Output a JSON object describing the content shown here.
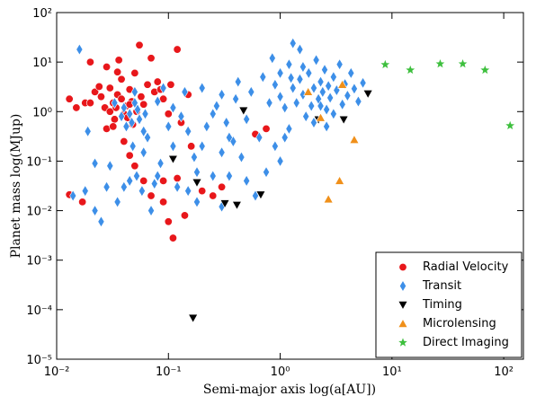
{
  "chart_data": {
    "type": "scatter",
    "x_label": "Semi-major axis log(a[AU])",
    "y_label": "Planet mass log(MJup)",
    "log_x": true,
    "log_y": true,
    "xlim": [
      0.01,
      150
    ],
    "ylim": [
      1e-05,
      100
    ],
    "xticks": [
      {
        "value": 0.01,
        "label": "10⁻²"
      },
      {
        "value": 0.1,
        "label": "10⁻¹"
      },
      {
        "value": 1,
        "label": "10⁰"
      },
      {
        "value": 10,
        "label": "10¹"
      },
      {
        "value": 100,
        "label": "10²"
      }
    ],
    "yticks": [
      {
        "value": 1e-05,
        "label": "10⁻⁵"
      },
      {
        "value": 0.0001,
        "label": "10⁻⁴"
      },
      {
        "value": 0.001,
        "label": "10⁻³"
      },
      {
        "value": 0.01,
        "label": "10⁻²"
      },
      {
        "value": 0.1,
        "label": "10⁻¹"
      },
      {
        "value": 1,
        "label": "10⁰"
      },
      {
        "value": 10,
        "label": "10¹"
      },
      {
        "value": 100,
        "label": "10²"
      }
    ],
    "legend": "lower right",
    "series": [
      {
        "name": "Radial Velocity",
        "color": "#e8171b",
        "marker": "circle",
        "x": [
          0.013,
          0.015,
          0.018,
          0.02,
          0.022,
          0.025,
          0.027,
          0.028,
          0.03,
          0.032,
          0.033,
          0.035,
          0.036,
          0.038,
          0.04,
          0.042,
          0.045,
          0.047,
          0.05,
          0.052,
          0.055,
          0.057,
          0.06,
          0.065,
          0.07,
          0.075,
          0.08,
          0.09,
          0.1,
          0.12,
          0.13,
          0.15,
          0.028,
          0.032,
          0.024,
          0.043,
          0.038,
          0.048,
          0.085,
          0.105,
          0.03,
          0.034,
          0.02,
          0.045,
          0.035,
          0.013,
          0.017,
          0.05,
          0.06,
          0.07,
          0.045,
          0.1,
          0.11,
          0.09,
          0.14,
          0.12,
          0.2,
          0.25,
          0.3,
          0.16,
          0.6,
          0.75,
          0.04,
          0.09
        ],
        "y": [
          1.8,
          1.2,
          1.5,
          10,
          2.5,
          2.0,
          1.2,
          8,
          3,
          1.5,
          0.7,
          2.2,
          11,
          1.8,
          0.9,
          1.3,
          2.8,
          1.6,
          6,
          1.0,
          22,
          2.0,
          1.4,
          3.5,
          12,
          2.5,
          4,
          1.8,
          0.9,
          18,
          0.6,
          2.2,
          0.45,
          0.5,
          3.2,
          0.75,
          4.5,
          0.55,
          2.8,
          3.5,
          1.0,
          1.2,
          1.5,
          1.4,
          6.3,
          0.021,
          0.015,
          0.08,
          0.04,
          0.02,
          0.13,
          0.006,
          0.0028,
          0.015,
          0.008,
          0.045,
          0.025,
          0.02,
          0.03,
          0.2,
          0.35,
          0.45,
          0.25,
          0.04
        ]
      },
      {
        "name": "Transit",
        "color": "#3d8fe8",
        "marker": "diamond",
        "x": [
          0.016,
          0.014,
          0.018,
          0.019,
          0.022,
          0.025,
          0.03,
          0.035,
          0.04,
          0.042,
          0.045,
          0.05,
          0.055,
          0.06,
          0.065,
          0.048,
          0.052,
          0.058,
          0.07,
          0.075,
          0.08,
          0.085,
          0.045,
          0.05,
          0.04,
          0.033,
          0.038,
          0.047,
          0.053,
          0.062,
          0.08,
          0.1,
          0.09,
          0.11,
          0.13,
          0.15,
          0.17,
          0.18,
          0.2,
          0.2,
          0.22,
          0.25,
          0.27,
          0.3,
          0.3,
          0.33,
          0.35,
          0.38,
          0.4,
          0.42,
          0.45,
          0.5,
          0.55,
          0.6,
          0.65,
          0.7,
          0.8,
          0.85,
          0.9,
          1.0,
          1.0,
          1.1,
          1.2,
          1.3,
          1.4,
          1.5,
          1.5,
          1.6,
          1.7,
          1.8,
          1.9,
          2.0,
          2.1,
          2.2,
          2.3,
          2.4,
          2.5,
          2.6,
          2.7,
          2.8,
          3.0,
          3.2,
          3.4,
          3.6,
          3.8,
          4.0,
          4.3,
          4.6,
          5.0,
          5.5,
          1.2,
          1.0,
          0.75,
          0.9,
          1.25,
          1.6,
          2.0,
          2.3,
          0.3,
          0.18,
          0.12,
          0.25,
          0.15,
          0.06,
          0.022,
          0.028,
          0.11,
          0.14,
          0.5,
          1.3,
          3.0,
          2.6,
          1.1,
          0.35
        ],
        "y": [
          18,
          0.02,
          0.025,
          0.4,
          0.01,
          0.006,
          0.08,
          0.015,
          0.03,
          0.5,
          0.9,
          1.5,
          0.7,
          0.4,
          0.3,
          0.2,
          0.05,
          0.025,
          0.01,
          0.035,
          0.05,
          0.09,
          0.04,
          2.5,
          1.2,
          1.5,
          0.8,
          0.6,
          1.1,
          0.9,
          1.6,
          0.5,
          3,
          0.2,
          0.8,
          0.4,
          0.12,
          0.06,
          0.2,
          3,
          0.5,
          0.9,
          1.3,
          0.15,
          2.2,
          0.6,
          0.05,
          0.25,
          1.8,
          4,
          0.12,
          0.7,
          2.5,
          0.02,
          0.3,
          5,
          1.5,
          12,
          3.5,
          2,
          6,
          1.2,
          9,
          3,
          1.5,
          18,
          4.5,
          2.2,
          0.8,
          6,
          1.3,
          3,
          11,
          1.8,
          4,
          2.5,
          7,
          1.1,
          3.3,
          1.9,
          5,
          2.7,
          9,
          1.4,
          3.6,
          2.1,
          6,
          2.9,
          1.6,
          3.8,
          0.45,
          0.1,
          0.06,
          0.2,
          4.8,
          8,
          0.6,
          1.3,
          0.012,
          0.015,
          0.03,
          0.05,
          0.025,
          0.15,
          0.09,
          0.03,
          1.2,
          2.5,
          0.04,
          24,
          0.9,
          0.5,
          0.3,
          0.3
        ]
      },
      {
        "name": "Timing",
        "color": "#000000",
        "marker": "triangle-down",
        "x": [
          0.11,
          0.18,
          0.47,
          0.32,
          0.41,
          0.67,
          2.2,
          3.7,
          6.1,
          0.166
        ],
        "y": [
          0.11,
          0.037,
          1.05,
          0.014,
          0.013,
          0.021,
          0.69,
          0.69,
          2.3,
          6.8e-05
        ]
      },
      {
        "name": "Microlensing",
        "color": "#f0901a",
        "marker": "triangle-up",
        "x": [
          1.78,
          2.3,
          3.6,
          4.6,
          3.4,
          2.7
        ],
        "y": [
          2.5,
          0.75,
          3.5,
          0.27,
          0.04,
          0.017
        ]
      },
      {
        "name": "Direct Imaging",
        "color": "#3dbf3d",
        "marker": "star",
        "x": [
          8.7,
          14.6,
          27,
          43,
          68,
          114
        ],
        "y": [
          8.9,
          6.9,
          9.2,
          9.2,
          6.9,
          0.52
        ]
      }
    ]
  }
}
